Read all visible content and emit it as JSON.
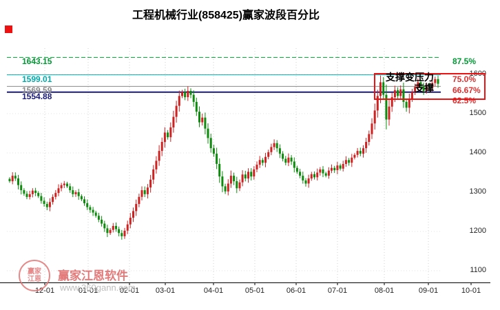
{
  "title": "工程机械行业(858425)赢家波段百分比",
  "annotation": {
    "line1": "支撑变压力",
    "line2": "支撑"
  },
  "watermark": {
    "brand": "赢家江恩软件",
    "url": "www.360gann.com",
    "logo_line1": "赢家",
    "logo_line2": "江恩"
  },
  "colors": {
    "up": "#cc2222",
    "down": "#0e8b0e",
    "axis": "#000000",
    "grid": "#cfcfcf",
    "hgrid": "#e0e0e0",
    "box": "#ee1111",
    "watermark": "#e06c6c",
    "watermark_url": "#bdbdbd"
  },
  "chart_data": {
    "type": "candlestick",
    "title": "工程机械行业(858425)赢家波段百分比",
    "x_ticks": [
      "12-01",
      "01-01",
      "02-01",
      "03-01",
      "04-01",
      "05-01",
      "06-01",
      "07-01",
      "08-01",
      "09-01",
      "10-01"
    ],
    "y_ticks": [
      1600,
      1500,
      1400,
      1300,
      1200,
      1100
    ],
    "y_range": [
      1085,
      1660
    ],
    "grid": true,
    "ref_lines": [
      {
        "price": 1643.15,
        "label": "1643.15",
        "pct": "87.5%",
        "line_color": "#009933",
        "pct_color": "#009933",
        "dashed": true,
        "width": 1
      },
      {
        "price": 1599.01,
        "label": "1599.01",
        "pct": "75.0%",
        "line_color": "#00a8a8",
        "pct_color": "#d93030",
        "dashed": false,
        "width": 1
      },
      {
        "price": 1569.59,
        "label": "1569.59",
        "pct": "66.67%",
        "line_color": "#8a8a8a",
        "pct_color": "#d93030",
        "dashed": false,
        "width": 1
      },
      {
        "price": 1554.88,
        "label": "1554.88",
        "pct": "62.5%",
        "line_color": "#19197a",
        "pct_color": "#d93030",
        "dashed": false,
        "width": 2
      }
    ],
    "closes": [
      1328,
      1342,
      1335,
      1318,
      1305,
      1296,
      1288,
      1295,
      1304,
      1298,
      1290,
      1278,
      1270,
      1262,
      1275,
      1288,
      1298,
      1310,
      1318,
      1322,
      1315,
      1305,
      1295,
      1300,
      1290,
      1282,
      1272,
      1262,
      1255,
      1248,
      1240,
      1230,
      1220,
      1208,
      1196,
      1204,
      1214,
      1206,
      1196,
      1188,
      1202,
      1218,
      1235,
      1252,
      1270,
      1288,
      1305,
      1295,
      1312,
      1332,
      1358,
      1380,
      1405,
      1428,
      1452,
      1440,
      1465,
      1492,
      1520,
      1545,
      1555,
      1542,
      1558,
      1548,
      1530,
      1505,
      1478,
      1490,
      1462,
      1438,
      1412,
      1398,
      1372,
      1340,
      1315,
      1302,
      1322,
      1342,
      1328,
      1310,
      1325,
      1345,
      1335,
      1352,
      1340,
      1358,
      1370,
      1382,
      1375,
      1390,
      1402,
      1415,
      1425,
      1412,
      1398,
      1385,
      1375,
      1388,
      1378,
      1362,
      1352,
      1342,
      1330,
      1322,
      1335,
      1346,
      1338,
      1350,
      1358,
      1348,
      1342,
      1355,
      1362,
      1356,
      1368,
      1360,
      1372,
      1382,
      1375,
      1388,
      1395,
      1405,
      1398,
      1412,
      1428,
      1448,
      1475,
      1508,
      1545,
      1580,
      1548,
      1485,
      1518,
      1542,
      1560,
      1545,
      1562,
      1530,
      1515,
      1538,
      1555,
      1568,
      1580,
      1570,
      1558,
      1572,
      1565,
      1578,
      1588,
      1576
    ]
  }
}
